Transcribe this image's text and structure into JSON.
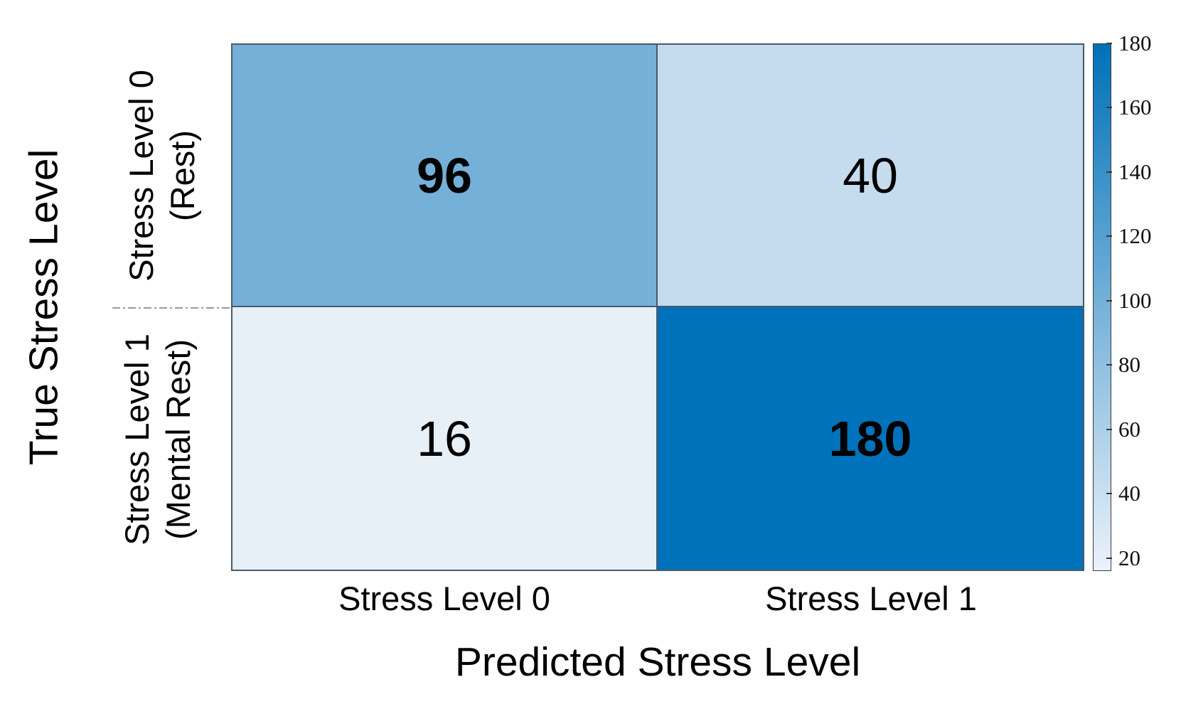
{
  "chart_data": {
    "type": "heatmap",
    "title": "",
    "xlabel": "Predicted Stress Level",
    "ylabel": "True Stress Level",
    "x_categories": [
      "Stress Level 0",
      "Stress Level 1"
    ],
    "y_categories": [
      {
        "line1": "Stress Level 0",
        "line2": "(Rest)"
      },
      {
        "line1": "Stress Level 1",
        "line2": "(Mental Rest)"
      }
    ],
    "matrix": [
      [
        96,
        40
      ],
      [
        16,
        180
      ]
    ],
    "emphasized_cells": "diagonal (96 and 180 shown in bold)",
    "cell_colors": [
      [
        "#74b0d8",
        "#c4dcee"
      ],
      [
        "#e7eff7",
        "#0072bb"
      ]
    ],
    "grid_color": "#4a5a6c",
    "colorbar": {
      "min": 16,
      "max": 180,
      "ticks": [
        20,
        40,
        60,
        80,
        100,
        120,
        140,
        160,
        180
      ],
      "color_low": "#ebf2fa",
      "color_high": "#0071b8",
      "position": "right"
    },
    "legend": "none",
    "grid": "cell borders only"
  }
}
